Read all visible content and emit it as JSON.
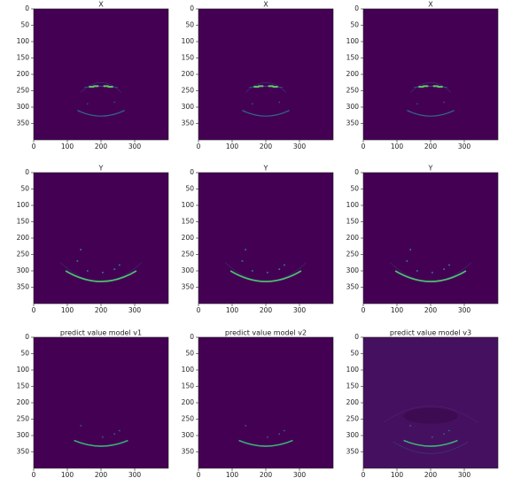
{
  "chart_data": [
    {
      "type": "image",
      "title": "X",
      "color": "#440154",
      "xlim": [
        0,
        400
      ],
      "ylim": [
        400,
        0
      ],
      "xticks": [
        0,
        100,
        200,
        300
      ],
      "yticks": [
        0,
        50,
        100,
        150,
        200,
        250,
        300,
        350
      ]
    },
    {
      "type": "image",
      "title": "X",
      "color": "#440154",
      "xlim": [
        0,
        400
      ],
      "ylim": [
        400,
        0
      ],
      "xticks": [
        0,
        100,
        200,
        300
      ],
      "yticks": [
        0,
        50,
        100,
        150,
        200,
        250,
        300,
        350
      ]
    },
    {
      "type": "image",
      "title": "X",
      "color": "#440154",
      "xlim": [
        0,
        400
      ],
      "ylim": [
        400,
        0
      ],
      "xticks": [
        0,
        100,
        200,
        300
      ],
      "yticks": [
        0,
        50,
        100,
        150,
        200,
        250,
        300,
        350
      ]
    },
    {
      "type": "image",
      "title": "Y",
      "color": "#440154",
      "xlim": [
        0,
        400
      ],
      "ylim": [
        400,
        0
      ],
      "xticks": [
        0,
        100,
        200,
        300
      ],
      "yticks": [
        0,
        50,
        100,
        150,
        200,
        250,
        300,
        350
      ]
    },
    {
      "type": "image",
      "title": "Y",
      "color": "#440154",
      "xlim": [
        0,
        400
      ],
      "ylim": [
        400,
        0
      ],
      "xticks": [
        0,
        100,
        200,
        300
      ],
      "yticks": [
        0,
        50,
        100,
        150,
        200,
        250,
        300,
        350
      ]
    },
    {
      "type": "image",
      "title": "Y",
      "color": "#440154",
      "xlim": [
        0,
        400
      ],
      "ylim": [
        400,
        0
      ],
      "xticks": [
        0,
        100,
        200,
        300
      ],
      "yticks": [
        0,
        50,
        100,
        150,
        200,
        250,
        300,
        350
      ]
    },
    {
      "type": "image",
      "title": "predict value model v1",
      "color": "#440154",
      "xlim": [
        0,
        400
      ],
      "ylim": [
        400,
        0
      ],
      "xticks": [
        0,
        100,
        200,
        300
      ],
      "yticks": [
        0,
        50,
        100,
        150,
        200,
        250,
        300,
        350
      ]
    },
    {
      "type": "image",
      "title": "predict value model v2",
      "color": "#440154",
      "xlim": [
        0,
        400
      ],
      "ylim": [
        400,
        0
      ],
      "xticks": [
        0,
        100,
        200,
        300
      ],
      "yticks": [
        0,
        50,
        100,
        150,
        200,
        250,
        300,
        350
      ]
    },
    {
      "type": "image",
      "title": "predict value model v3",
      "color": "#461060",
      "xlim": [
        0,
        400
      ],
      "ylim": [
        400,
        0
      ],
      "xticks": [
        0,
        100,
        200,
        300
      ],
      "yticks": [
        0,
        50,
        100,
        150,
        200,
        250,
        300,
        350
      ]
    }
  ]
}
